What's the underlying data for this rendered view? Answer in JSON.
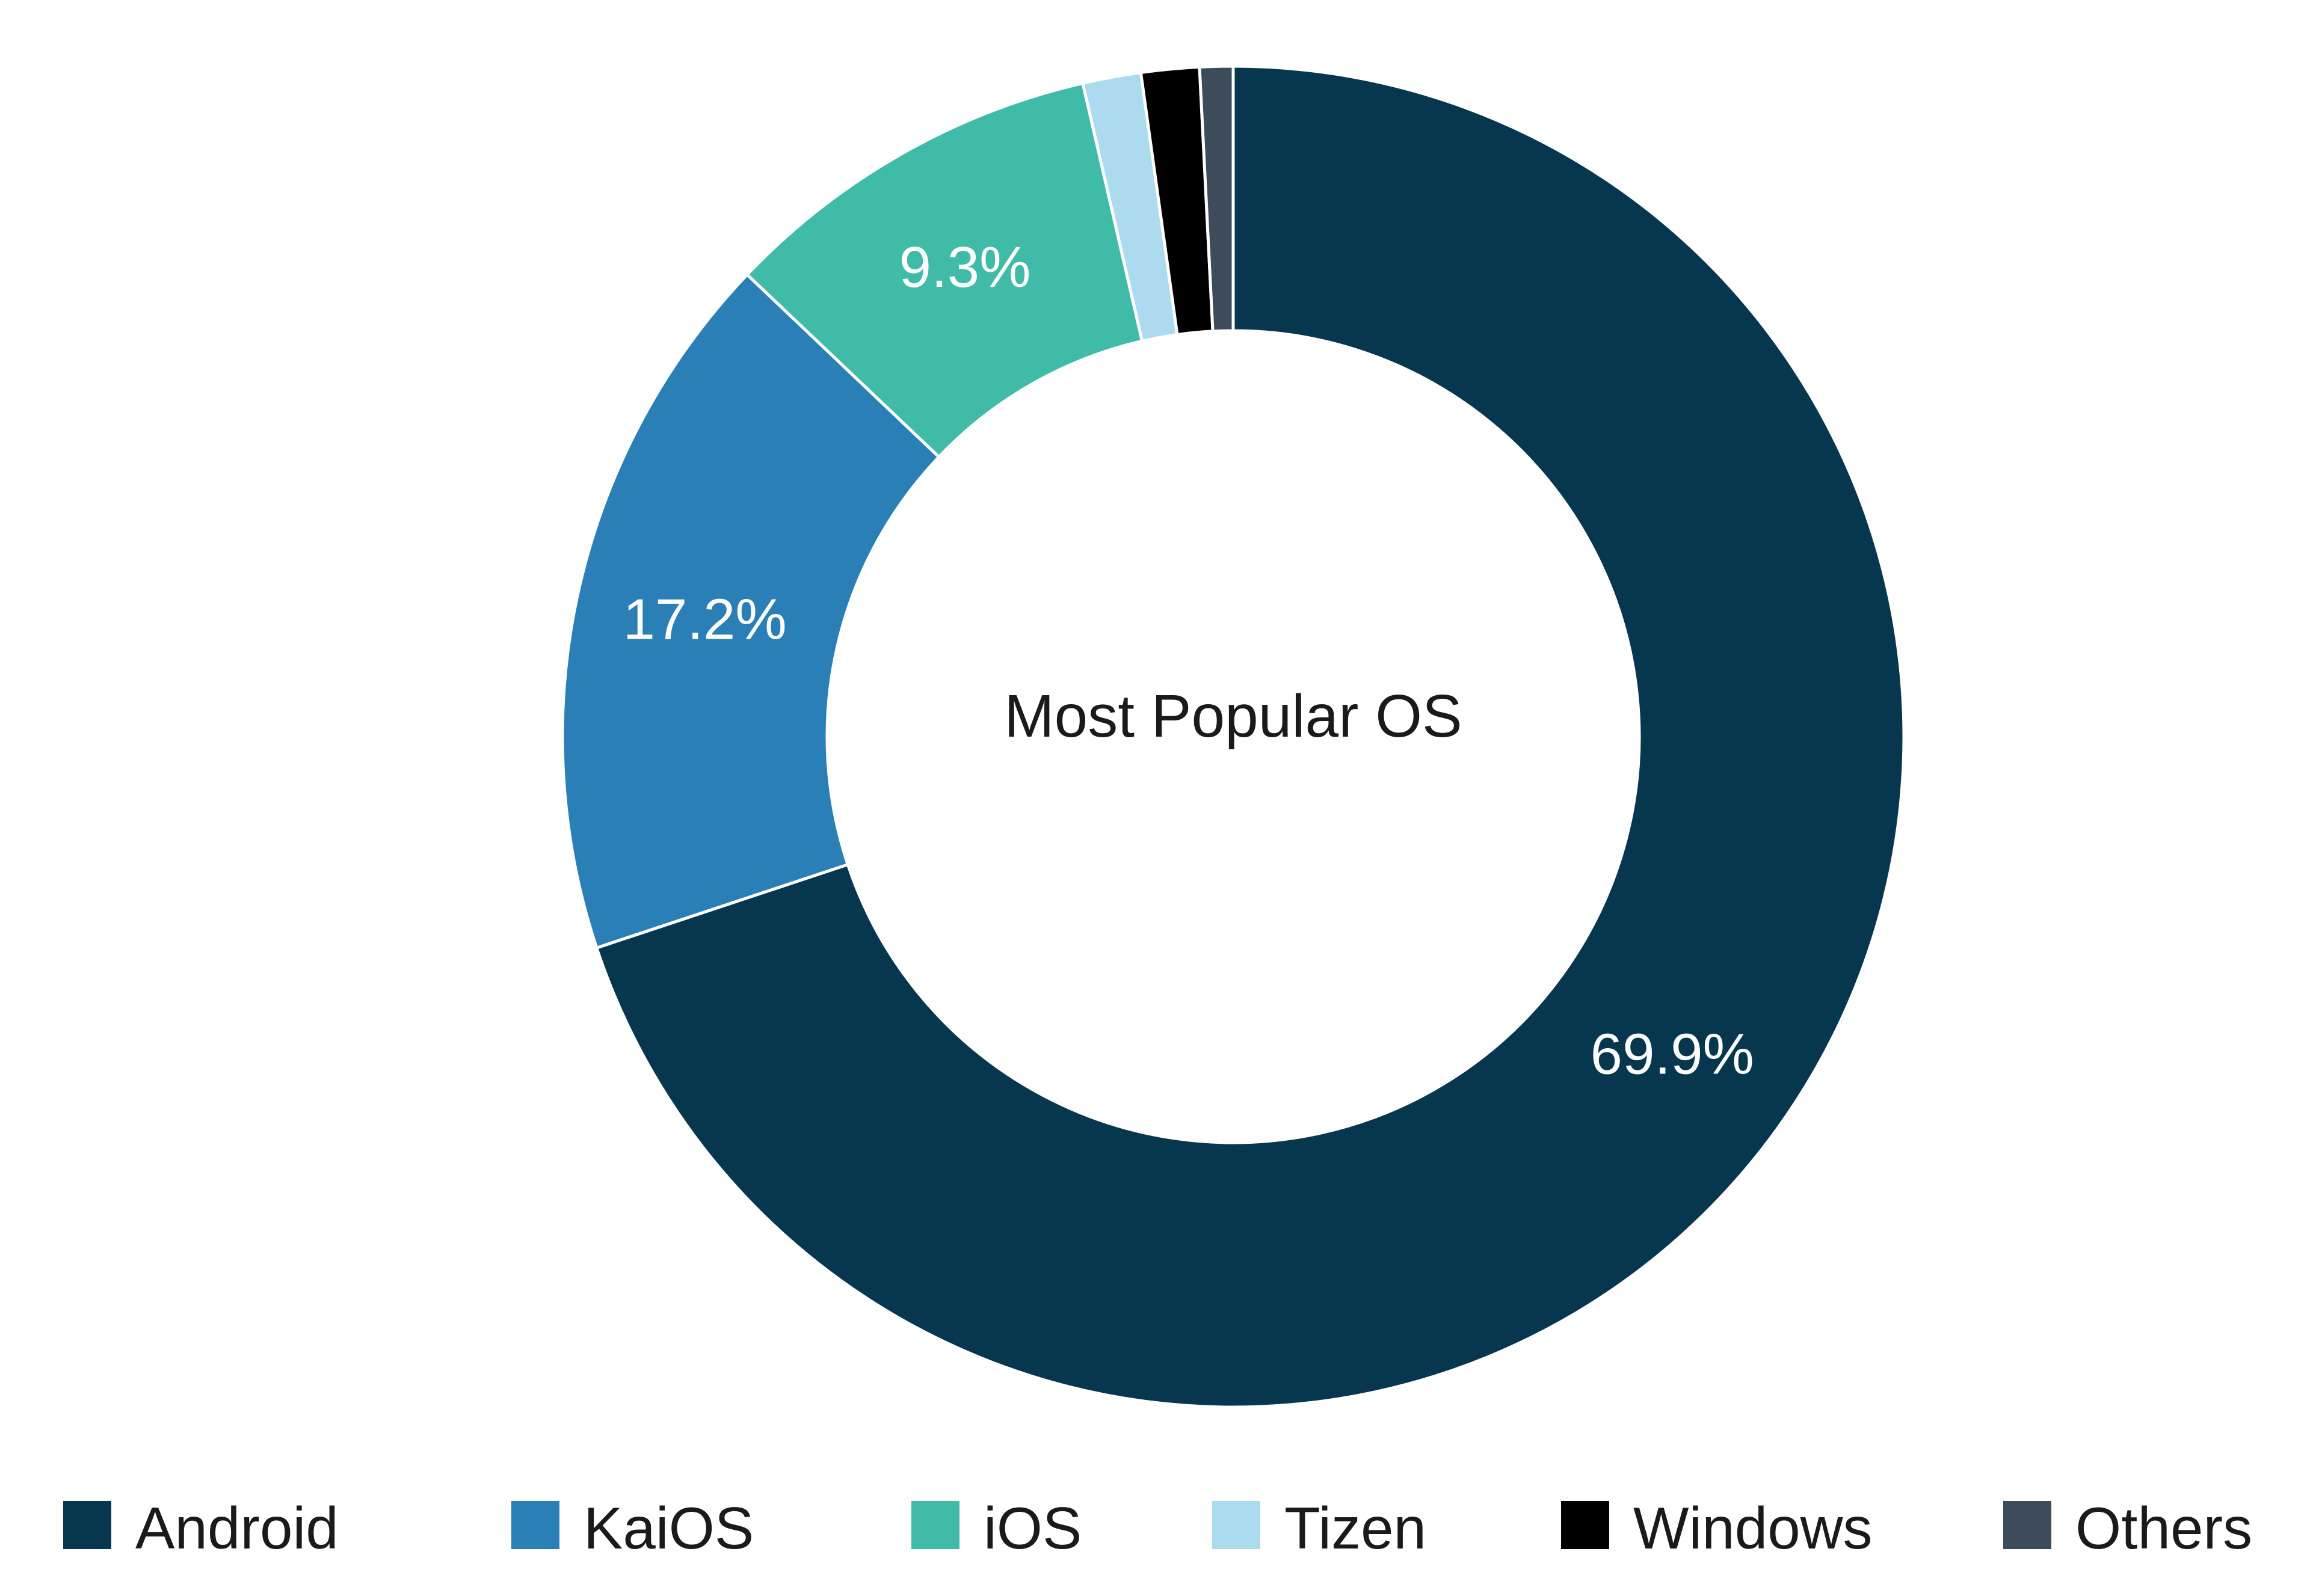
{
  "chart_data": {
    "type": "pie",
    "style": "donut",
    "title": "Most Popular OS",
    "start_angle_deg": 0,
    "direction": "clockwise",
    "legend_position": "bottom",
    "slices": [
      {
        "label": "Android",
        "value": 69.9,
        "display": "69.9%",
        "color": "#07374f"
      },
      {
        "label": "KaiOS",
        "value": 17.2,
        "display": "17.2%",
        "color": "#2a7fb6"
      },
      {
        "label": "iOS",
        "value": 9.3,
        "display": "9.3%",
        "color": "#3fbba8"
      },
      {
        "label": "Tizen",
        "value": 1.4,
        "display": "",
        "color": "#acdbef"
      },
      {
        "label": "Windows",
        "value": 1.4,
        "display": "",
        "color": "#000000"
      },
      {
        "label": "Others",
        "value": 0.8,
        "display": "",
        "color": "#3d4c5b"
      }
    ]
  }
}
